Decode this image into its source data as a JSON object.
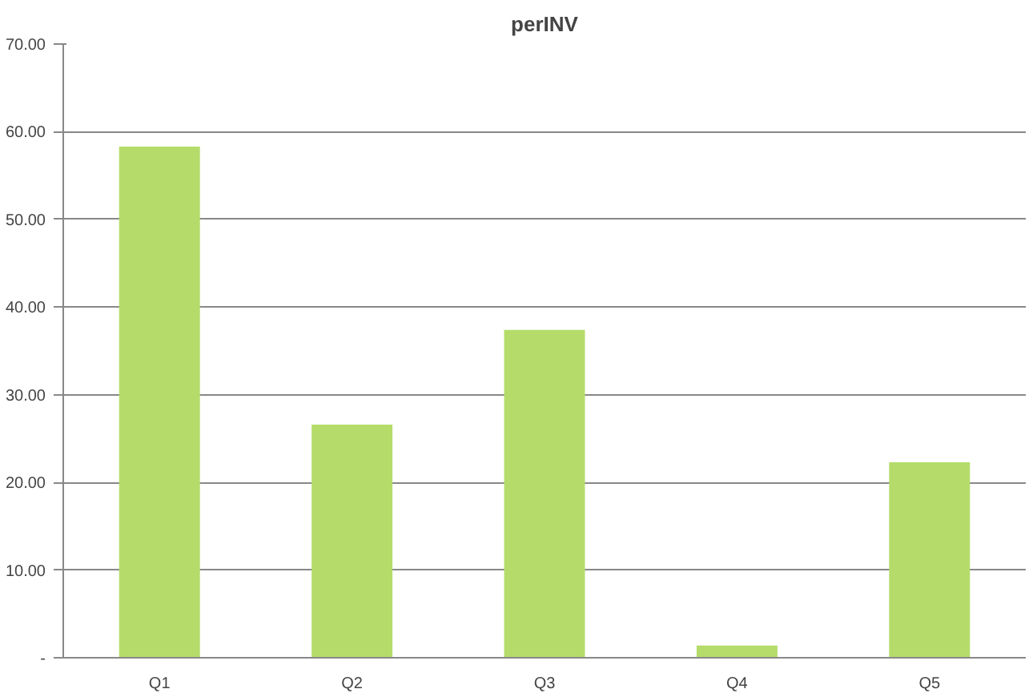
{
  "chart_data": {
    "type": "bar",
    "title": "perINV",
    "categories": [
      "Q1",
      "Q2",
      "Q3",
      "Q4",
      "Q5"
    ],
    "values": [
      58.3,
      26.6,
      37.4,
      1.4,
      22.3
    ],
    "color": "#b5dc6a",
    "ylim": [
      0,
      70
    ],
    "yticks": [
      {
        "value": 0,
        "label": "-"
      },
      {
        "value": 10,
        "label": "10.00"
      },
      {
        "value": 20,
        "label": "20.00"
      },
      {
        "value": 30,
        "label": "30.00"
      },
      {
        "value": 40,
        "label": "40.00"
      },
      {
        "value": 50,
        "label": "50.00"
      },
      {
        "value": 60,
        "label": "60.00"
      },
      {
        "value": 70,
        "label": "70.00"
      }
    ],
    "grid": "y"
  }
}
